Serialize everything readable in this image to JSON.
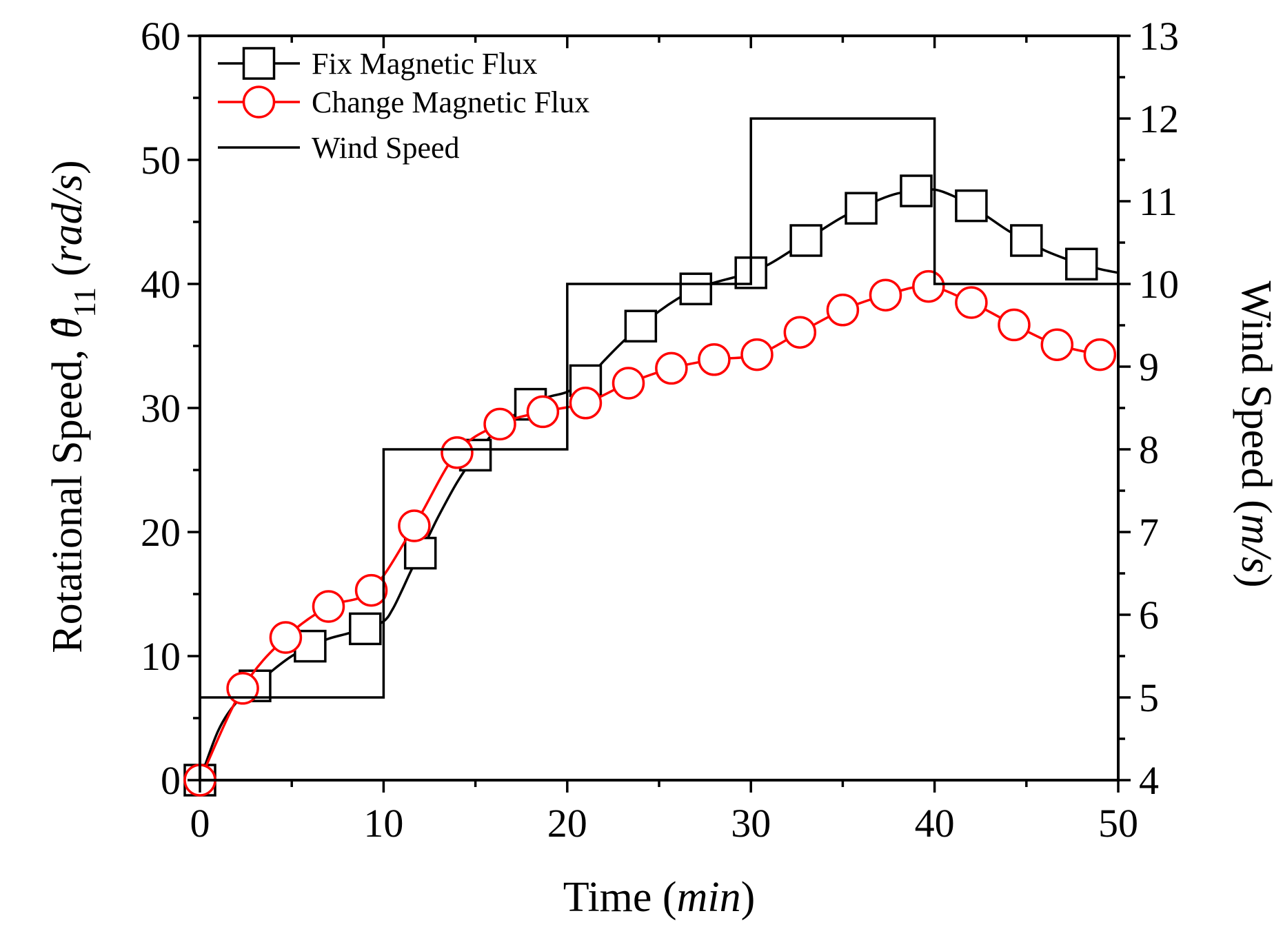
{
  "chart_data": {
    "type": "line",
    "title": "",
    "xlabel": {
      "prefix": "Time (",
      "unit": "min",
      "suffix": ")"
    },
    "ylabel_left": {
      "prefix": "Rotational Speed, ",
      "symbol": "θ",
      "dot": "·",
      "subscript": "11",
      "space": " (",
      "unit": "rad/s",
      "suffix": ")"
    },
    "ylabel_right": {
      "prefix": "Wind Speed (",
      "unit": "m/s",
      "suffix": ")"
    },
    "xlim": [
      0,
      50
    ],
    "ylim_left": [
      0,
      60
    ],
    "ylim_right": [
      4,
      13
    ],
    "x_ticks": [
      0,
      10,
      20,
      30,
      40,
      50
    ],
    "y_left_ticks": [
      0,
      10,
      20,
      30,
      40,
      50,
      60
    ],
    "y_right_ticks": [
      4,
      5,
      6,
      7,
      8,
      9,
      10,
      11,
      12,
      13
    ],
    "grid": false,
    "legend_position": "top-left",
    "series": [
      {
        "name": "Fix Magnetic Flux",
        "axis": "left",
        "color": "#000000",
        "marker": "square",
        "x": [
          0,
          3,
          6,
          9,
          12,
          15,
          18,
          21,
          24,
          27,
          30,
          33,
          36,
          39,
          42,
          45,
          48
        ],
        "y": [
          0,
          7.6,
          10.8,
          12.2,
          18.3,
          26.2,
          30.3,
          32.2,
          36.6,
          39.6,
          40.9,
          43.5,
          46.1,
          47.5,
          46.3,
          43.5,
          41.6
        ],
        "curve_x": [
          0,
          1,
          2,
          3,
          4,
          5,
          6,
          7,
          8,
          9,
          10,
          10.5,
          11,
          11.5,
          12,
          12.5,
          13,
          14,
          15,
          16,
          17,
          18,
          19,
          20,
          21,
          22,
          23,
          24,
          25,
          26,
          27,
          28,
          29,
          30,
          31,
          32,
          33,
          34,
          35,
          36,
          37,
          38,
          39,
          40,
          41,
          42,
          43,
          44,
          45,
          46,
          47,
          48,
          49,
          50
        ],
        "curve_y": [
          0,
          4.0,
          6.3,
          7.6,
          8.9,
          10.0,
          10.8,
          11.4,
          11.8,
          12.2,
          12.8,
          13.8,
          15.3,
          16.9,
          18.3,
          19.8,
          21.3,
          24.0,
          26.2,
          28.0,
          29.3,
          30.3,
          30.9,
          31.3,
          32.2,
          33.8,
          35.3,
          36.6,
          37.8,
          38.8,
          39.6,
          40.1,
          40.5,
          40.9,
          41.6,
          42.5,
          43.5,
          44.5,
          45.4,
          46.1,
          46.8,
          47.3,
          47.5,
          47.6,
          47.1,
          46.3,
          45.3,
          44.3,
          43.5,
          42.7,
          42.1,
          41.6,
          41.2,
          40.9
        ]
      },
      {
        "name": "Change Magnetic Flux",
        "axis": "left",
        "color": "#ff0000",
        "marker": "circle",
        "x": [
          0,
          2.33,
          4.67,
          7.0,
          9.33,
          11.67,
          14.0,
          16.33,
          18.67,
          21.0,
          23.33,
          25.67,
          28.0,
          30.33,
          32.67,
          35.0,
          37.33,
          39.67,
          42.0,
          44.33,
          46.67,
          49.0
        ],
        "y": [
          0,
          7.4,
          11.5,
          14.0,
          15.3,
          20.5,
          26.4,
          28.7,
          29.7,
          30.4,
          32.0,
          33.2,
          33.9,
          34.3,
          36.1,
          37.9,
          39.1,
          39.8,
          38.5,
          36.7,
          35.1,
          34.3
        ]
      },
      {
        "name": "Wind Speed",
        "axis": "right",
        "color": "#000000",
        "marker": "none",
        "step": true,
        "x": [
          0,
          10,
          10,
          20,
          20,
          30,
          30,
          40,
          40,
          50
        ],
        "y": [
          5,
          5,
          8,
          8,
          10,
          10,
          12,
          12,
          10,
          10
        ]
      }
    ]
  }
}
